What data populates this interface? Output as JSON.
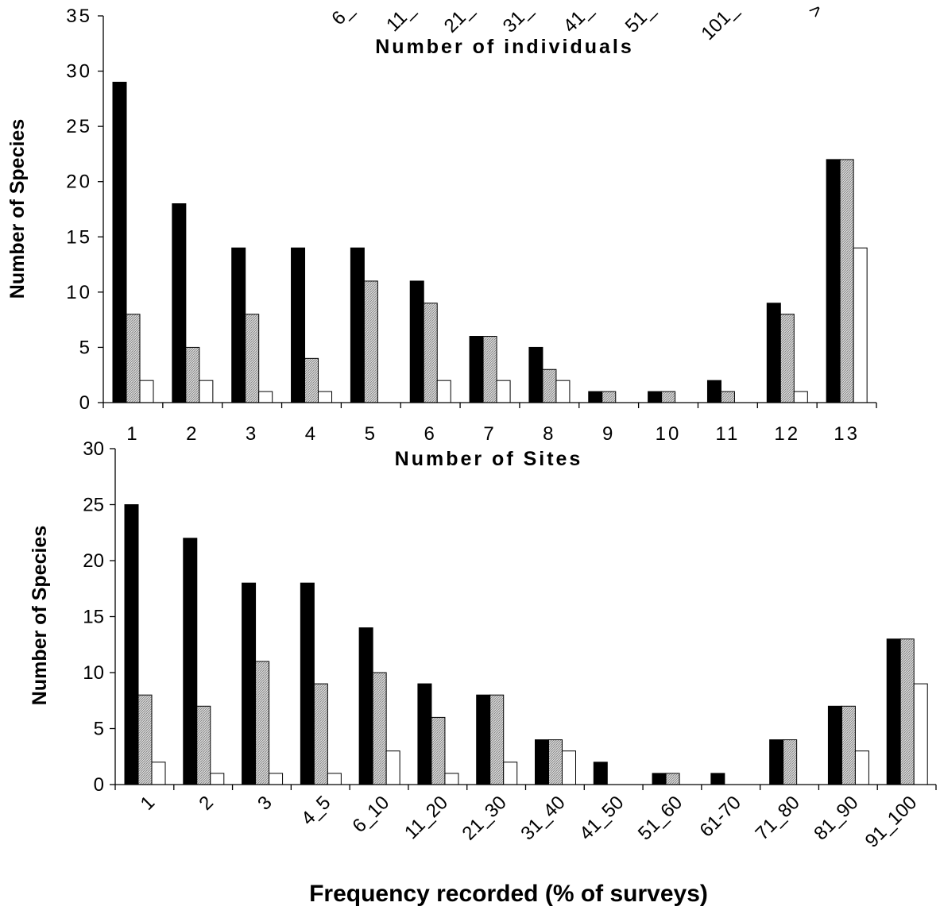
{
  "chart_data": [
    {
      "type": "bar",
      "xlabel": "Number of individuals",
      "ylabel": "",
      "categories": [
        "6_",
        "11_",
        "21_",
        "31_",
        "41_",
        "51_",
        "101_",
        ">"
      ],
      "series_fills": [
        "#000000",
        "#bdbdbd",
        "#ffffff"
      ],
      "visible": "x-axis title and tick labels only (upper portion cropped)"
    },
    {
      "type": "bar",
      "xlabel": "Number of Sites",
      "ylabel": "Number of Species",
      "ylim": [
        0,
        35
      ],
      "yticks": [
        0,
        5,
        10,
        15,
        20,
        25,
        30,
        35
      ],
      "categories": [
        "1",
        "2",
        "3",
        "4",
        "5",
        "6",
        "7",
        "8",
        "9",
        "10",
        "11",
        "12",
        "13"
      ],
      "series": [
        {
          "fill": "#000000",
          "values": [
            29,
            18,
            14,
            14,
            14,
            11,
            6,
            5,
            1,
            1,
            2,
            9,
            22
          ]
        },
        {
          "fill": "#bdbdbd",
          "values": [
            8,
            5,
            8,
            4,
            11,
            9,
            6,
            3,
            1,
            1,
            1,
            8,
            22
          ]
        },
        {
          "fill": "#ffffff",
          "values": [
            2,
            2,
            1,
            1,
            0,
            2,
            2,
            2,
            0,
            0,
            0,
            1,
            14
          ]
        }
      ]
    },
    {
      "type": "bar",
      "xlabel": "Frequency recorded (% of surveys)",
      "ylabel": "Number of Species",
      "ylim": [
        0,
        30
      ],
      "yticks": [
        0,
        5,
        10,
        15,
        20,
        25,
        30
      ],
      "categories": [
        "1",
        "2",
        "3",
        "4_5",
        "6_10",
        "11_20",
        "21_30",
        "31_40",
        "41_50",
        "51_60",
        "61-70",
        "71_80",
        "81_90",
        "91_100"
      ],
      "series": [
        {
          "fill": "#000000",
          "values": [
            25,
            22,
            18,
            18,
            14,
            9,
            8,
            4,
            2,
            1,
            1,
            4,
            7,
            13
          ]
        },
        {
          "fill": "#bdbdbd",
          "values": [
            8,
            7,
            11,
            9,
            10,
            6,
            8,
            4,
            0,
            1,
            0,
            4,
            7,
            13
          ]
        },
        {
          "fill": "#ffffff",
          "values": [
            2,
            1,
            1,
            1,
            3,
            1,
            2,
            3,
            0,
            0,
            0,
            0,
            3,
            9
          ]
        }
      ]
    }
  ]
}
